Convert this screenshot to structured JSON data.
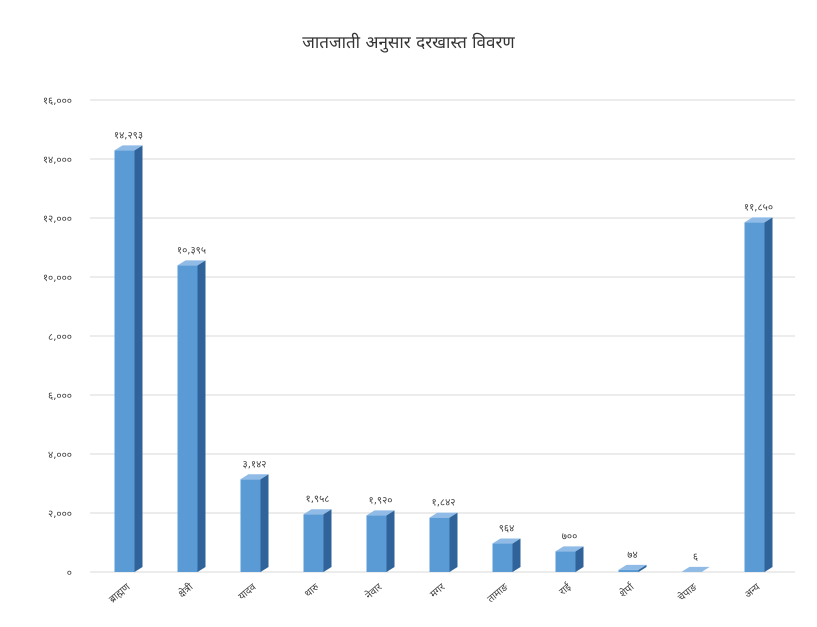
{
  "chart_data": {
    "type": "bar",
    "title": "जातजाती अनुसार दरखास्त विवरण",
    "xlabel": "",
    "ylabel": "",
    "ylim": [
      0,
      16000
    ],
    "grid": true,
    "legend": "none",
    "y_ticks": [
      0,
      2000,
      4000,
      6000,
      8000,
      10000,
      12000,
      14000,
      16000
    ],
    "y_tick_labels": [
      "०",
      "२,०००",
      "४,०००",
      "६,०००",
      "८,०००",
      "१०,०००",
      "१२,०००",
      "१४,०००",
      "१६,०००"
    ],
    "categories": [
      "ब्राह्मण",
      "क्षेत्री",
      "यादव",
      "थारु",
      "नेवार",
      "मगर",
      "तामाङ",
      "राई",
      "शेर्पा",
      "चेपाङ",
      "अन्य"
    ],
    "values": [
      14293,
      10395,
      3142,
      1958,
      1920,
      1842,
      964,
      700,
      74,
      6,
      11850
    ],
    "data_labels": [
      "१४,२९३",
      "१०,३९५",
      "३,१४२",
      "१,९५८",
      "१,९२०",
      "१,८४२",
      "९६४",
      "७००",
      "७४",
      "६",
      "११,८५०"
    ],
    "colors": {
      "bar_front": "#5b9bd5",
      "bar_side": "#2f6399",
      "bar_top": "#8fbbe6",
      "grid": "#d9d9d9",
      "text": "#404040"
    }
  }
}
